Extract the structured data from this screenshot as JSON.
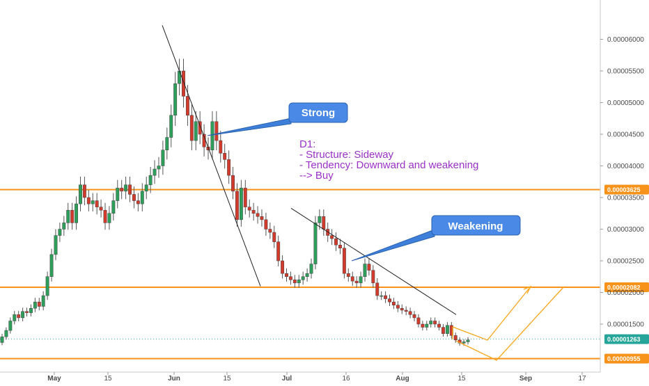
{
  "chart_data": {
    "type": "candlestick",
    "price_axis": {
      "range": [
        8.5e-06,
        6.6e-06
      ],
      "ticks": [
        "0.00001500",
        "0.00002000",
        "0.00002500",
        "0.00003000",
        "0.00003500",
        "0.00004000",
        "0.00004500",
        "0.00005000",
        "0.00005500",
        "0.00006000"
      ],
      "tick_values": [
        1.5e-05,
        2e-05,
        2.5e-05,
        3e-05,
        3.5e-05,
        4e-05,
        4.5e-05,
        5e-05,
        5.5e-05,
        6e-05
      ]
    },
    "time_axis": {
      "labels": [
        "May",
        "15",
        "Jun",
        "15",
        "Jul",
        "16",
        "Aug",
        "15",
        "Sep",
        "17"
      ],
      "bold": [
        true,
        false,
        true,
        false,
        true,
        false,
        true,
        false,
        true,
        false
      ]
    },
    "levels": [
      {
        "value": 3.625e-05,
        "label": "0.00003625",
        "color": "#f7931a"
      },
      {
        "value": 2.082e-05,
        "label": "0.00002082",
        "color": "#f7931a"
      },
      {
        "value": 9.55e-06,
        "label": "0.00000955",
        "color": "#f7931a"
      }
    ],
    "last_price": {
      "value": 1.263e-05,
      "label": "0.00001263",
      "color": "#26a69a"
    },
    "callouts": [
      {
        "text": "Strong"
      },
      {
        "text": "Weakening"
      }
    ],
    "annotation_lines": [
      "D1:",
      "- Structure: Sideway",
      "- Tendency: Downward and weakening",
      "--> Buy"
    ],
    "trendlines": [
      {
        "from": [
          6.22e-05,
          0
        ],
        "to": [
          2.1e-05,
          0
        ]
      },
      {
        "from": [
          3.33e-05,
          0
        ],
        "to": [
          1.65e-05,
          0
        ]
      }
    ],
    "candles_close": [
      1.3e-05,
      1.4e-05,
      1.55e-05,
      1.65e-05,
      1.6e-05,
      1.7e-05,
      1.68e-05,
      1.75e-05,
      1.85e-05,
      1.78e-05,
      1.95e-05,
      2.25e-05,
      2.6e-05,
      2.9e-05,
      3e-05,
      3.1e-05,
      3.3e-05,
      3.1e-05,
      3.4e-05,
      3.7e-05,
      3.5e-05,
      3.4e-05,
      3.45e-05,
      3.35e-05,
      3.3e-05,
      3.1e-05,
      3.25e-05,
      3.45e-05,
      3.65e-05,
      3.6e-05,
      3.7e-05,
      3.55e-05,
      3.45e-05,
      3.4e-05,
      3.6e-05,
      3.7e-05,
      3.85e-05,
      3.95e-05,
      4e-05,
      4.25e-05,
      4.45e-05,
      4.8e-05,
      5.3e-05,
      5.5e-05,
      5.1e-05,
      4.8e-05,
      4.4e-05,
      4.7e-05,
      4.5e-05,
      4.3e-05,
      4.25e-05,
      4.7e-05,
      4.4e-05,
      4.2e-05,
      4.1e-05,
      3.85e-05,
      3.6e-05,
      3.15e-05,
      3.65e-05,
      3.35e-05,
      3.3e-05,
      3.25e-05,
      3.2e-05,
      3.15e-05,
      3e-05,
      2.95e-05,
      2.8e-05,
      2.5e-05,
      2.3e-05,
      2.25e-05,
      2.2e-05,
      2.15e-05,
      2.2e-05,
      2.25e-05,
      2.3e-05,
      2.45e-05,
      3.1e-05,
      3.2e-05,
      3e-05,
      2.9e-05,
      2.85e-05,
      2.75e-05,
      2.7e-05,
      2.3e-05,
      2.25e-05,
      2.18e-05,
      2.15e-05,
      2.25e-05,
      2.45e-05,
      2.35e-05,
      2.15e-05,
      1.95e-05,
      1.95e-05,
      1.9e-05,
      1.85e-05,
      1.8e-05,
      1.75e-05,
      1.72e-05,
      1.7e-05,
      1.65e-05,
      1.6e-05,
      1.5e-05,
      1.45e-05,
      1.5e-05,
      1.55e-05,
      1.5e-05,
      1.45e-05,
      1.35e-05,
      1.48e-05,
      1.32e-05,
      1.25e-05,
      1.2e-05,
      1.22e-05,
      1.25e-05
    ],
    "projection": [
      [
        1.2e-05,
        2.05e-05
      ],
      [
        9.5e-06,
        2.05e-05
      ]
    ]
  }
}
